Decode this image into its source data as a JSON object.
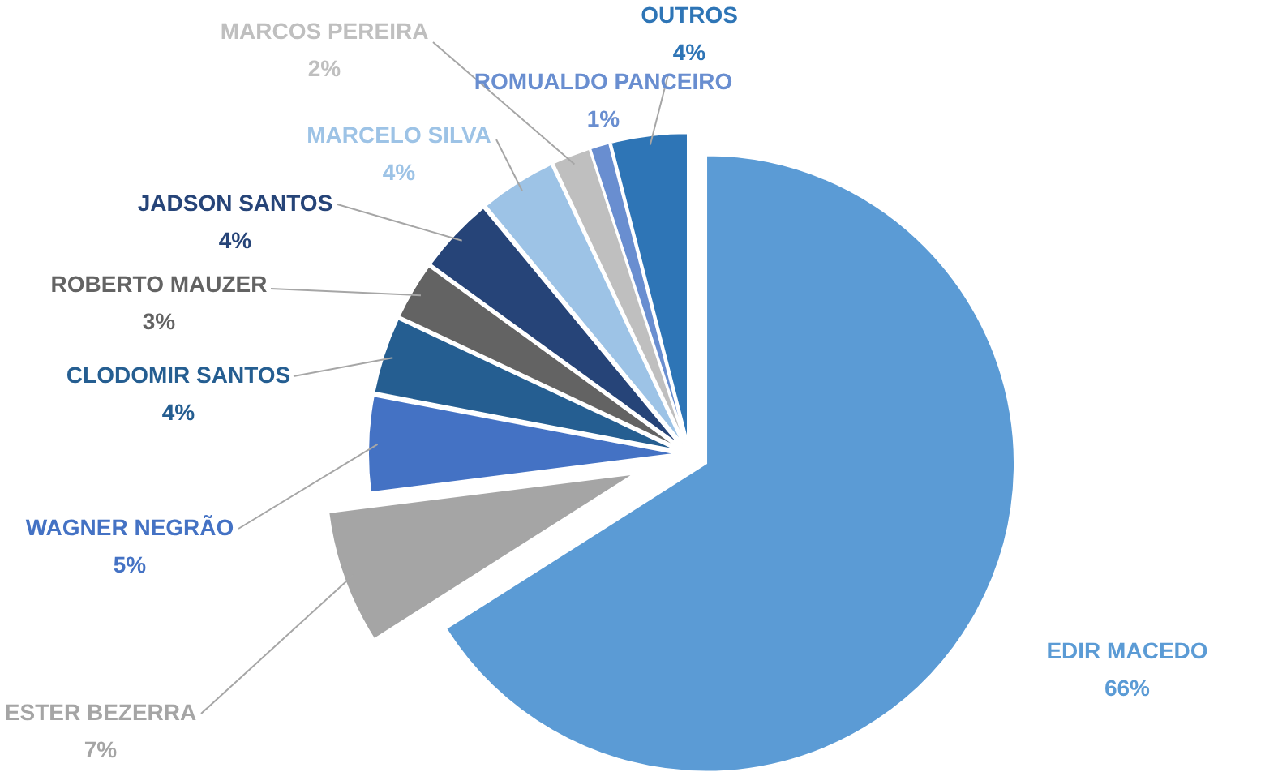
{
  "chart_data": {
    "type": "pie",
    "categories": [
      "EDIR MACEDO",
      "ESTER BEZERRA",
      "WAGNER NEGRÃO",
      "CLODOMIR SANTOS",
      "ROBERTO MAUZER",
      "JADSON SANTOS",
      "MARCELO SILVA",
      "MARCOS PEREIRA",
      "ROMUALDO PANCEIRO",
      "OUTROS"
    ],
    "values": [
      66,
      7,
      5,
      4,
      3,
      4,
      4,
      2,
      1,
      4
    ],
    "value_labels": [
      "66%",
      "7%",
      "5%",
      "4%",
      "3%",
      "4%",
      "4%",
      "2%",
      "1%",
      "4%"
    ],
    "colors": [
      "#5b9bd5",
      "#a5a5a5",
      "#4472c4",
      "#255e91",
      "#636363",
      "#264478",
      "#9dc3e6",
      "#bfbfbf",
      "#698ed0",
      "#2e75b6"
    ]
  }
}
